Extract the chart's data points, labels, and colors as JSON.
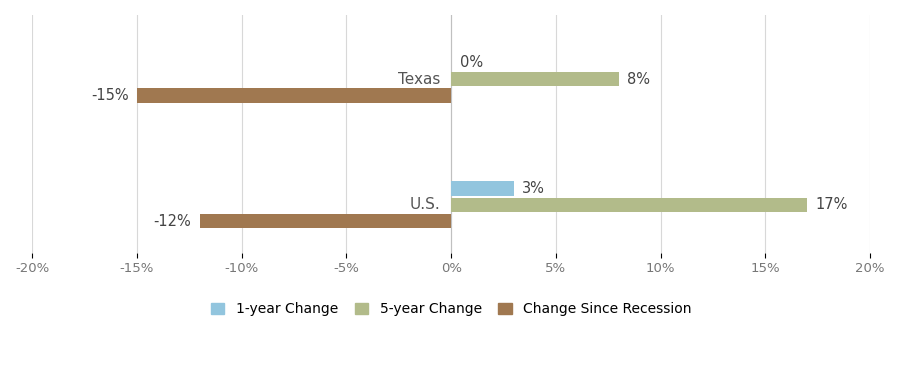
{
  "categories": [
    "Texas",
    "U.S."
  ],
  "series": {
    "1-year Change": [
      0,
      3
    ],
    "5-year Change": [
      8,
      17
    ],
    "Change Since Recession": [
      -15,
      -12
    ]
  },
  "colors": {
    "1-year Change": "#92c5de",
    "5-year Change": "#b2bb8a",
    "Change Since Recession": "#a07850"
  },
  "xlim": [
    -20,
    20
  ],
  "xticks": [
    -20,
    -15,
    -10,
    -5,
    0,
    5,
    10,
    15,
    20
  ],
  "xtick_labels": [
    "-20%",
    "-15%",
    "-10%",
    "-5%",
    "0%",
    "5%",
    "10%",
    "15%",
    "20%"
  ],
  "bar_height": 0.13,
  "label_fontsize": 10.5,
  "tick_fontsize": 9.5,
  "legend_fontsize": 10,
  "category_label_fontsize": 11,
  "background_color": "#ffffff",
  "grid_color": "#d8d8d8",
  "annotations": {
    "Texas": {
      "1-year Change": "0%",
      "5-year Change": "8%",
      "Change Since Recession": "-15%"
    },
    "U.S.": {
      "1-year Change": "3%",
      "5-year Change": "17%",
      "Change Since Recession": "-12%"
    }
  }
}
